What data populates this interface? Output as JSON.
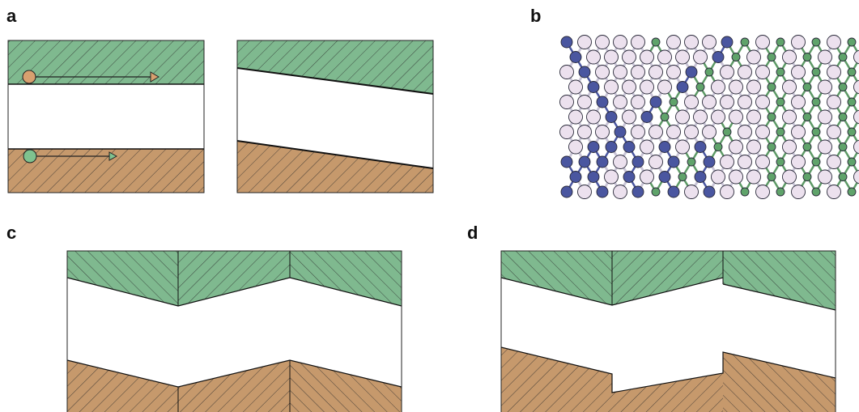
{
  "panel_labels": {
    "a": "a",
    "b": "b",
    "c": "c",
    "d": "d"
  },
  "colors": {
    "green_fill": "#7fb98f",
    "brown_fill": "#c6996c",
    "hatch_line": "#2b2b2b",
    "arrow_orange": "#d8a06f",
    "arrow_green": "#7fc28f",
    "atom_light": "#ece1ee",
    "atom_blue": "#4a56a0",
    "atom_green": "#5fa36a",
    "bond_light": "#c9c4d6",
    "bond_blue": "#4a56a0",
    "bond_green": "#5d9a66"
  }
}
